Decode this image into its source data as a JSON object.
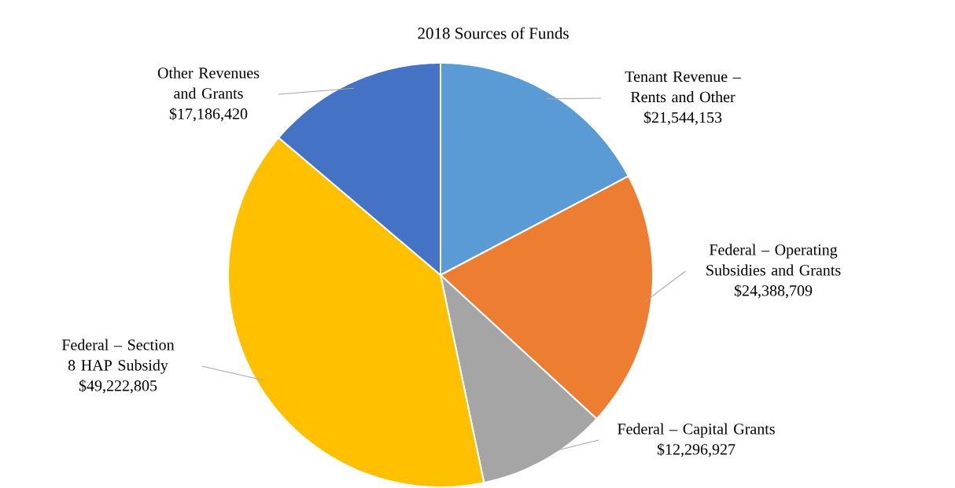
{
  "chart_data": {
    "type": "pie",
    "title": "2018 Sources of Funds",
    "categories": [
      "Tenant Revenue – Rents and Other",
      "Federal – Operating Subsidies and Grants",
      "Federal – Capital Grants",
      "Federal – Section 8 HAP Subsidy",
      "Other Revenues and Grants"
    ],
    "values": [
      21544153,
      24388709,
      12296927,
      49222805,
      17186420
    ],
    "colors": [
      "#5b9bd5",
      "#ed7d31",
      "#a5a5a5",
      "#ffc000",
      "#4472c4"
    ],
    "value_labels": [
      "$21,544,153",
      "$24,388,709",
      "$12,296,927",
      "$49,222,805",
      "$17,186,420"
    ]
  }
}
